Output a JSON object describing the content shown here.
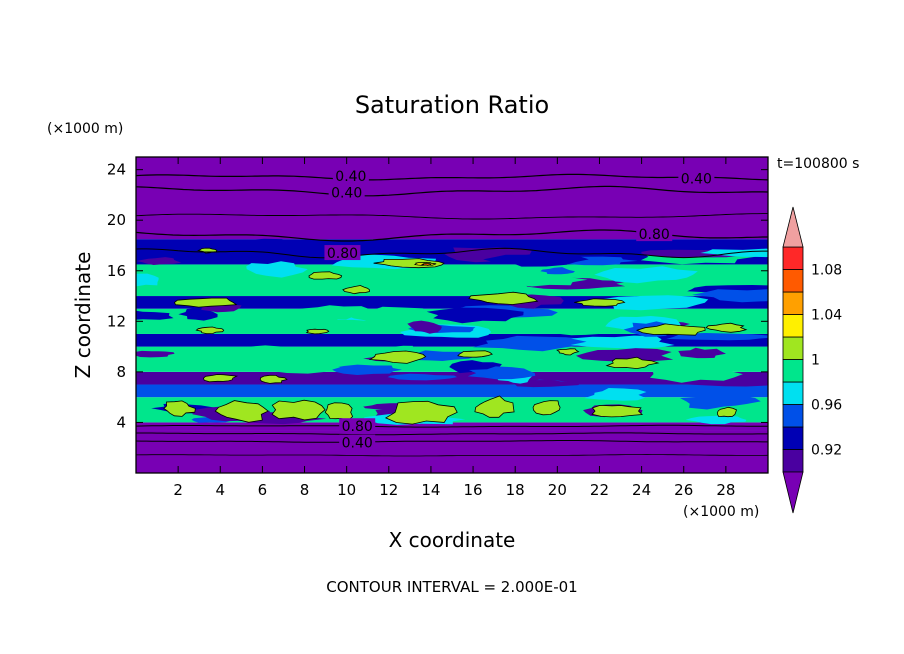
{
  "chart_data": {
    "type": "heatmap",
    "title": "Saturation Ratio",
    "xlabel": "X coordinate",
    "ylabel": "Z coordinate",
    "x_unit": "(×1000 m)",
    "z_unit": "(×1000 m)",
    "time_label": "t=100800 s",
    "footer": "CONTOUR INTERVAL = 2.000E-01",
    "xlim": [
      0,
      30
    ],
    "ylim": [
      0,
      25
    ],
    "x_ticks": [
      "2",
      "4",
      "6",
      "8",
      "10",
      "12",
      "14",
      "16",
      "18",
      "20",
      "22",
      "24",
      "26",
      "28"
    ],
    "x_tick_values": [
      2,
      4,
      6,
      8,
      10,
      12,
      14,
      16,
      18,
      20,
      22,
      24,
      26,
      28
    ],
    "y_ticks": [
      "4",
      "8",
      "12",
      "16",
      "20",
      "24"
    ],
    "y_tick_values": [
      4,
      8,
      12,
      16,
      20,
      24
    ],
    "colorbar": {
      "labels": [
        "0.92",
        "0.96",
        "1",
        "1.04",
        "1.08"
      ],
      "label_values": [
        0.92,
        0.96,
        1.0,
        1.04,
        1.08
      ],
      "levels": [
        {
          "lo": 0.9,
          "hi": 0.92,
          "color": "#4a00a0"
        },
        {
          "lo": 0.92,
          "hi": 0.94,
          "color": "#0000b4"
        },
        {
          "lo": 0.94,
          "hi": 0.96,
          "color": "#0050e8"
        },
        {
          "lo": 0.96,
          "hi": 0.98,
          "color": "#00e0f0"
        },
        {
          "lo": 0.98,
          "hi": 1.0,
          "color": "#00e68c"
        },
        {
          "lo": 1.0,
          "hi": 1.02,
          "color": "#a0e620"
        },
        {
          "lo": 1.02,
          "hi": 1.04,
          "color": "#fff000"
        },
        {
          "lo": 1.04,
          "hi": 1.06,
          "color": "#ffa000"
        },
        {
          "lo": 1.06,
          "hi": 1.08,
          "color": "#ff5a00"
        },
        {
          "lo": 1.08,
          "hi": 1.1,
          "color": "#ff2828"
        }
      ],
      "over_color": "#f0a0a0",
      "under_color": "#7800b4"
    },
    "contour_labels": [
      {
        "text": "0.40",
        "x": 10.2,
        "z": 23.5
      },
      {
        "text": "0.40",
        "x": 10.0,
        "z": 22.2
      },
      {
        "text": "0.40",
        "x": 26.6,
        "z": 23.3
      },
      {
        "text": "0.80",
        "x": 9.8,
        "z": 17.4
      },
      {
        "text": "0.80",
        "x": 24.6,
        "z": 18.9
      },
      {
        "text": "0.80",
        "x": 10.5,
        "z": 3.7
      },
      {
        "text": "0.40",
        "x": 10.5,
        "z": 2.4
      }
    ],
    "bands": [
      {
        "z": [
          0,
          3.4
        ],
        "value": 0.5
      },
      {
        "z": [
          3.4,
          4.0
        ],
        "value": 0.85
      },
      {
        "z": [
          4.0,
          6.0
        ],
        "value": 0.99
      },
      {
        "z": [
          6.0,
          7.0
        ],
        "value": 0.95
      },
      {
        "z": [
          7.0,
          8.0
        ],
        "value": 0.91
      },
      {
        "z": [
          8.0,
          10.0
        ],
        "value": 0.98
      },
      {
        "z": [
          10.0,
          11.0
        ],
        "value": 0.93
      },
      {
        "z": [
          11.0,
          13.0
        ],
        "value": 0.985
      },
      {
        "z": [
          13.0,
          14.0
        ],
        "value": 0.92
      },
      {
        "z": [
          14.0,
          16.5
        ],
        "value": 0.99
      },
      {
        "z": [
          16.5,
          18.5
        ],
        "value": 0.93
      },
      {
        "z": [
          18.5,
          25.0
        ],
        "value": 0.5
      }
    ]
  }
}
